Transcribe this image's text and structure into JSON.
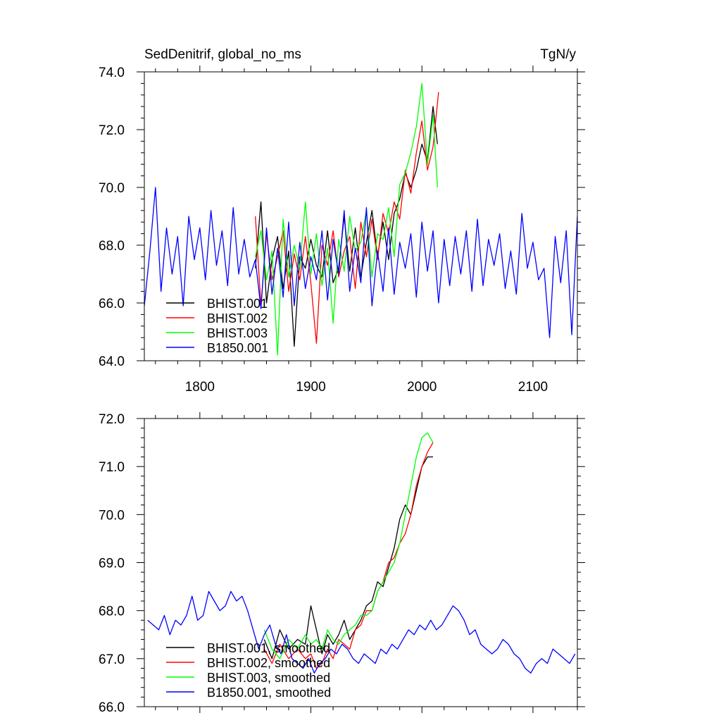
{
  "chart_data": [
    {
      "type": "line",
      "title": "SedDenitrif, global_no_ms",
      "units": "TgN/y",
      "xlim": [
        1750,
        2140
      ],
      "ylim": [
        64.0,
        74.0
      ],
      "xticks": [
        1800,
        1900,
        2000,
        2100
      ],
      "xtick_labels": [
        "1800",
        "1900",
        "2000",
        "2100"
      ],
      "yticks": [
        64.0,
        66.0,
        68.0,
        70.0,
        72.0,
        74.0
      ],
      "ytick_labels": [
        "64.0",
        "66.0",
        "68.0",
        "70.0",
        "72.0",
        "74.0"
      ],
      "grid": false,
      "legend_position": "lower-left",
      "series": [
        {
          "name": "BHIST.001",
          "color": "#000000",
          "x": [
            1850,
            1855,
            1860,
            1865,
            1870,
            1875,
            1880,
            1885,
            1890,
            1895,
            1900,
            1905,
            1910,
            1915,
            1920,
            1925,
            1930,
            1935,
            1940,
            1945,
            1950,
            1955,
            1960,
            1965,
            1970,
            1975,
            1980,
            1985,
            1990,
            1995,
            2000,
            2005,
            2010,
            2014
          ],
          "y": [
            67.2,
            69.5,
            66.0,
            67.5,
            68.3,
            66.5,
            67.8,
            64.5,
            67.6,
            67.2,
            68.2,
            67.3,
            66.9,
            68.5,
            66.7,
            67.2,
            69.0,
            67.1,
            68.6,
            66.9,
            68.1,
            69.2,
            67.6,
            68.8,
            67.5,
            69.1,
            69.6,
            70.5,
            70.0,
            70.6,
            71.5,
            70.9,
            72.8,
            71.5
          ]
        },
        {
          "name": "BHIST.002",
          "color": "#ff0000",
          "x": [
            1850,
            1855,
            1860,
            1865,
            1870,
            1875,
            1880,
            1885,
            1890,
            1895,
            1900,
            1905,
            1910,
            1915,
            1920,
            1925,
            1930,
            1935,
            1940,
            1945,
            1950,
            1955,
            1960,
            1965,
            1970,
            1975,
            1980,
            1985,
            1990,
            1995,
            2000,
            2005,
            2010,
            2015
          ],
          "y": [
            69.0,
            65.9,
            68.4,
            66.8,
            67.6,
            68.5,
            66.4,
            67.7,
            66.8,
            68.3,
            66.7,
            64.6,
            68.0,
            67.3,
            68.5,
            66.9,
            67.8,
            68.3,
            66.5,
            68.8,
            67.6,
            68.9,
            67.5,
            69.1,
            68.4,
            69.5,
            68.9,
            70.6,
            69.8,
            71.2,
            72.3,
            70.6,
            71.4,
            73.3
          ]
        },
        {
          "name": "BHIST.003",
          "color": "#00ff00",
          "x": [
            1850,
            1855,
            1860,
            1865,
            1870,
            1875,
            1880,
            1885,
            1890,
            1895,
            1900,
            1905,
            1910,
            1915,
            1920,
            1925,
            1930,
            1935,
            1940,
            1945,
            1950,
            1955,
            1960,
            1965,
            1970,
            1975,
            1980,
            1985,
            1990,
            1995,
            2000,
            2005,
            2010,
            2014
          ],
          "y": [
            67.6,
            68.5,
            66.8,
            67.8,
            64.2,
            68.9,
            66.9,
            68.0,
            67.2,
            69.5,
            67.0,
            68.4,
            66.6,
            67.9,
            65.3,
            68.2,
            67.1,
            69.0,
            67.8,
            68.1,
            69.2,
            66.9,
            68.4,
            68.2,
            69.3,
            67.6,
            70.1,
            70.5,
            71.2,
            72.1,
            73.6,
            70.8,
            72.5,
            70.0
          ]
        },
        {
          "name": "B1850.001",
          "color": "#0000ff",
          "x": [
            1750,
            1755,
            1760,
            1765,
            1770,
            1775,
            1780,
            1785,
            1790,
            1795,
            1800,
            1805,
            1810,
            1815,
            1820,
            1825,
            1830,
            1835,
            1840,
            1845,
            1850,
            1855,
            1860,
            1865,
            1870,
            1875,
            1880,
            1885,
            1890,
            1895,
            1900,
            1905,
            1910,
            1915,
            1920,
            1925,
            1930,
            1935,
            1940,
            1945,
            1950,
            1955,
            1960,
            1965,
            1970,
            1975,
            1980,
            1985,
            1990,
            1995,
            2000,
            2005,
            2010,
            2015,
            2020,
            2025,
            2030,
            2035,
            2040,
            2045,
            2050,
            2055,
            2060,
            2065,
            2070,
            2075,
            2080,
            2085,
            2090,
            2095,
            2100,
            2105,
            2110,
            2115,
            2120,
            2125,
            2130,
            2135,
            2140
          ],
          "y": [
            65.9,
            67.8,
            70.0,
            66.4,
            68.6,
            67.0,
            68.3,
            65.9,
            69.0,
            67.5,
            68.6,
            66.8,
            69.2,
            67.3,
            68.5,
            66.6,
            69.3,
            67.0,
            68.2,
            66.9,
            67.5,
            65.8,
            68.6,
            66.3,
            67.9,
            66.2,
            68.8,
            65.9,
            68.1,
            66.5,
            67.6,
            66.8,
            68.5,
            66.1,
            68.2,
            67.0,
            69.2,
            66.4,
            67.9,
            66.7,
            69.3,
            65.9,
            67.8,
            66.4,
            68.6,
            66.3,
            68.1,
            67.2,
            68.4,
            66.2,
            68.8,
            67.1,
            68.5,
            66.0,
            68.2,
            66.6,
            68.3,
            67.0,
            68.5,
            66.4,
            68.9,
            66.6,
            68.2,
            67.3,
            68.4,
            66.5,
            67.8,
            66.3,
            69.1,
            67.2,
            68.1,
            66.8,
            67.2,
            64.8,
            68.3,
            66.7,
            68.5,
            64.9,
            69.0
          ]
        }
      ]
    },
    {
      "type": "line",
      "xlim": [
        1750,
        2140
      ],
      "ylim": [
        66.0,
        72.0
      ],
      "xticks": [
        1800,
        1900,
        2000,
        2100
      ],
      "yticks": [
        66.0,
        67.0,
        68.0,
        69.0,
        70.0,
        71.0,
        72.0
      ],
      "ytick_labels": [
        "66.0",
        "67.0",
        "68.0",
        "69.0",
        "70.0",
        "71.0",
        "72.0"
      ],
      "grid": false,
      "legend_position": "lower-left",
      "series": [
        {
          "name": "BHIST.001, smoothed",
          "color": "#000000",
          "x": [
            1858,
            1865,
            1872,
            1880,
            1888,
            1895,
            1900,
            1905,
            1910,
            1915,
            1920,
            1925,
            1930,
            1935,
            1940,
            1945,
            1950,
            1955,
            1960,
            1965,
            1970,
            1975,
            1980,
            1985,
            1990,
            1995,
            2000,
            2005,
            2010
          ],
          "y": [
            67.4,
            67.0,
            67.6,
            67.2,
            67.4,
            67.3,
            68.1,
            67.6,
            67.1,
            67.5,
            67.3,
            67.5,
            67.8,
            67.4,
            67.6,
            67.8,
            68.1,
            68.2,
            68.6,
            68.5,
            68.9,
            69.3,
            69.9,
            70.2,
            70.0,
            70.5,
            71.0,
            71.2,
            71.2
          ]
        },
        {
          "name": "BHIST.002, smoothed",
          "color": "#ff0000",
          "x": [
            1858,
            1865,
            1872,
            1880,
            1888,
            1895,
            1900,
            1905,
            1910,
            1915,
            1920,
            1925,
            1930,
            1935,
            1940,
            1945,
            1950,
            1955,
            1960,
            1965,
            1970,
            1975,
            1980,
            1985,
            1990,
            1995,
            2000,
            2005,
            2010
          ],
          "y": [
            67.2,
            66.9,
            67.3,
            67.0,
            67.2,
            67.0,
            67.1,
            66.8,
            66.9,
            67.2,
            67.0,
            67.4,
            67.3,
            67.2,
            67.6,
            67.7,
            68.0,
            68.0,
            68.4,
            68.6,
            69.0,
            69.1,
            69.4,
            69.6,
            70.0,
            70.6,
            71.0,
            71.3,
            71.5
          ]
        },
        {
          "name": "BHIST.003, smoothed",
          "color": "#00ff00",
          "x": [
            1858,
            1865,
            1872,
            1880,
            1888,
            1895,
            1900,
            1905,
            1910,
            1915,
            1920,
            1925,
            1930,
            1935,
            1940,
            1945,
            1950,
            1955,
            1960,
            1965,
            1970,
            1975,
            1980,
            1985,
            1990,
            1995,
            2000,
            2005,
            2010
          ],
          "y": [
            67.6,
            67.2,
            67.0,
            67.4,
            67.2,
            67.5,
            67.3,
            67.4,
            67.2,
            67.6,
            67.4,
            67.3,
            67.5,
            67.6,
            67.7,
            67.9,
            67.9,
            68.0,
            68.4,
            68.6,
            68.8,
            69.0,
            69.4,
            70.0,
            70.6,
            71.2,
            71.6,
            71.7,
            71.5
          ]
        },
        {
          "name": "B1850.001, smoothed",
          "color": "#0000ff",
          "x": [
            1753,
            1758,
            1763,
            1768,
            1773,
            1778,
            1783,
            1788,
            1793,
            1798,
            1803,
            1808,
            1813,
            1818,
            1823,
            1828,
            1833,
            1838,
            1843,
            1848,
            1853,
            1858,
            1863,
            1868,
            1873,
            1878,
            1883,
            1888,
            1893,
            1898,
            1903,
            1908,
            1913,
            1918,
            1923,
            1928,
            1933,
            1938,
            1943,
            1948,
            1953,
            1958,
            1963,
            1968,
            1973,
            1978,
            1983,
            1988,
            1993,
            1998,
            2003,
            2008,
            2013,
            2018,
            2023,
            2028,
            2033,
            2038,
            2043,
            2048,
            2053,
            2058,
            2063,
            2068,
            2073,
            2078,
            2083,
            2088,
            2093,
            2098,
            2103,
            2108,
            2113,
            2118,
            2123,
            2128,
            2133,
            2138
          ],
          "y": [
            67.8,
            67.7,
            67.6,
            67.9,
            67.5,
            67.8,
            67.7,
            67.9,
            68.3,
            67.8,
            67.9,
            68.4,
            68.2,
            68.0,
            68.1,
            68.4,
            68.2,
            68.3,
            68.0,
            67.6,
            67.2,
            67.5,
            67.7,
            67.3,
            67.1,
            67.5,
            67.0,
            66.9,
            66.8,
            67.0,
            66.7,
            66.9,
            67.0,
            67.2,
            67.1,
            67.3,
            67.2,
            67.0,
            66.9,
            67.1,
            67.0,
            66.9,
            67.2,
            67.1,
            67.3,
            67.2,
            67.4,
            67.6,
            67.5,
            67.7,
            67.6,
            67.8,
            67.6,
            67.7,
            67.9,
            68.1,
            68.0,
            67.8,
            67.5,
            67.6,
            67.3,
            67.2,
            67.1,
            67.2,
            67.4,
            67.3,
            67.1,
            67.0,
            66.8,
            66.7,
            66.9,
            67.0,
            66.9,
            67.2,
            67.1,
            67.0,
            66.9,
            67.1
          ]
        }
      ]
    }
  ]
}
